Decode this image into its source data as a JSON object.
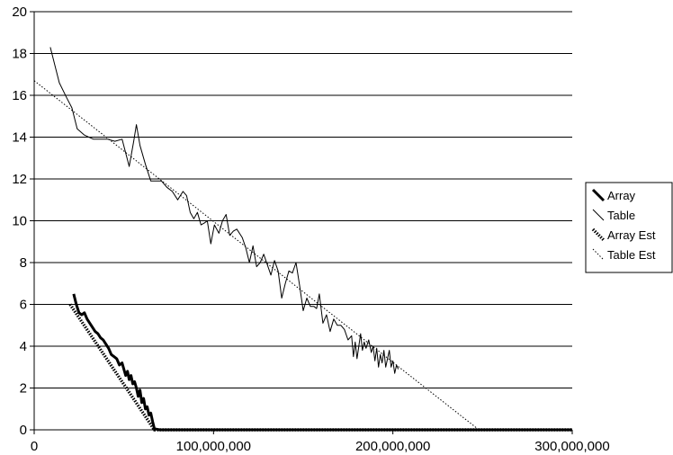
{
  "chart_data": {
    "type": "line",
    "title": "",
    "xlabel": "",
    "ylabel": "",
    "xlim": [
      0,
      300000000
    ],
    "ylim": [
      0,
      20
    ],
    "grid": "horizontal",
    "legend_position": "right",
    "x_ticks": [
      0,
      100000000,
      200000000,
      300000000
    ],
    "x_tick_labels": [
      "0",
      "100,000,000",
      "200,000,000",
      "300,000,000"
    ],
    "y_ticks": [
      0,
      2,
      4,
      6,
      8,
      10,
      12,
      14,
      16,
      18,
      20
    ],
    "y_tick_labels": [
      "0",
      "2",
      "4",
      "6",
      "8",
      "10",
      "12",
      "14",
      "16",
      "18",
      "20"
    ],
    "series": [
      {
        "name": "Array",
        "style": "thick-solid",
        "color": "#000000",
        "points": [
          [
            22000000,
            6.5
          ],
          [
            23500000,
            6.0
          ],
          [
            25000000,
            5.6
          ],
          [
            26500000,
            5.5
          ],
          [
            28000000,
            5.6
          ],
          [
            29500000,
            5.3
          ],
          [
            31000000,
            5.1
          ],
          [
            32500000,
            4.9
          ],
          [
            34000000,
            4.7
          ],
          [
            35500000,
            4.6
          ],
          [
            37000000,
            4.4
          ],
          [
            38500000,
            4.3
          ],
          [
            40000000,
            4.1
          ],
          [
            41500000,
            3.9
          ],
          [
            43000000,
            3.6
          ],
          [
            44500000,
            3.5
          ],
          [
            46000000,
            3.4
          ],
          [
            47500000,
            3.1
          ],
          [
            49000000,
            3.2
          ],
          [
            50000000,
            2.9
          ],
          [
            51000000,
            2.6
          ],
          [
            52000000,
            2.8
          ],
          [
            53000000,
            2.4
          ],
          [
            54000000,
            2.6
          ],
          [
            55000000,
            2.2
          ],
          [
            56000000,
            2.3
          ],
          [
            57000000,
            2.0
          ],
          [
            58000000,
            1.6
          ],
          [
            59000000,
            1.9
          ],
          [
            60000000,
            1.3
          ],
          [
            61000000,
            1.5
          ],
          [
            62000000,
            1.0
          ],
          [
            63000000,
            1.1
          ],
          [
            64000000,
            0.7
          ],
          [
            65000000,
            0.8
          ],
          [
            66000000,
            0.4
          ],
          [
            67000000,
            0.05
          ],
          [
            70000000,
            0
          ],
          [
            300000000,
            0
          ]
        ]
      },
      {
        "name": "Table",
        "style": "thin-solid",
        "color": "#000000",
        "points": [
          [
            9000000,
            18.3
          ],
          [
            14000000,
            16.6
          ],
          [
            18000000,
            15.9
          ],
          [
            21000000,
            15.4
          ],
          [
            24000000,
            14.4
          ],
          [
            28000000,
            14.1
          ],
          [
            33000000,
            13.9
          ],
          [
            38000000,
            13.9
          ],
          [
            41000000,
            13.9
          ],
          [
            45000000,
            13.8
          ],
          [
            49000000,
            13.9
          ],
          [
            53000000,
            12.6
          ],
          [
            55500000,
            13.8
          ],
          [
            57000000,
            14.6
          ],
          [
            59000000,
            13.6
          ],
          [
            62000000,
            12.7
          ],
          [
            65000000,
            11.9
          ],
          [
            68000000,
            11.9
          ],
          [
            71000000,
            11.9
          ],
          [
            74000000,
            11.6
          ],
          [
            77000000,
            11.4
          ],
          [
            80000000,
            11.0
          ],
          [
            83000000,
            11.4
          ],
          [
            85000000,
            11.2
          ],
          [
            87000000,
            10.4
          ],
          [
            89000000,
            10.1
          ],
          [
            91000000,
            10.4
          ],
          [
            93000000,
            9.8
          ],
          [
            95000000,
            9.9
          ],
          [
            96500000,
            10.0
          ],
          [
            98500000,
            8.9
          ],
          [
            100500000,
            9.8
          ],
          [
            103000000,
            9.4
          ],
          [
            105000000,
            10.0
          ],
          [
            107000000,
            10.3
          ],
          [
            109000000,
            9.3
          ],
          [
            111000000,
            9.5
          ],
          [
            113000000,
            9.6
          ],
          [
            116000000,
            9.2
          ],
          [
            118000000,
            8.7
          ],
          [
            120000000,
            8.0
          ],
          [
            122000000,
            8.8
          ],
          [
            124000000,
            7.8
          ],
          [
            126000000,
            8.0
          ],
          [
            128000000,
            8.4
          ],
          [
            130000000,
            7.9
          ],
          [
            132000000,
            7.4
          ],
          [
            134000000,
            8.1
          ],
          [
            136000000,
            7.6
          ],
          [
            138000000,
            6.3
          ],
          [
            140000000,
            7.0
          ],
          [
            142000000,
            7.6
          ],
          [
            144000000,
            7.5
          ],
          [
            146000000,
            8.0
          ],
          [
            148000000,
            6.9
          ],
          [
            150000000,
            5.7
          ],
          [
            152000000,
            6.3
          ],
          [
            154000000,
            5.9
          ],
          [
            156000000,
            5.9
          ],
          [
            157500000,
            5.8
          ],
          [
            159000000,
            6.5
          ],
          [
            161000000,
            5.1
          ],
          [
            163000000,
            5.5
          ],
          [
            165000000,
            4.7
          ],
          [
            167000000,
            5.3
          ],
          [
            169000000,
            5.0
          ],
          [
            171000000,
            5.0
          ],
          [
            173000000,
            4.8
          ],
          [
            175000000,
            4.3
          ],
          [
            177000000,
            4.5
          ],
          [
            178000000,
            3.5
          ],
          [
            179000000,
            4.2
          ],
          [
            180000000,
            3.4
          ],
          [
            181000000,
            4.0
          ],
          [
            182000000,
            4.6
          ],
          [
            183000000,
            3.8
          ],
          [
            184000000,
            4.2
          ],
          [
            185000000,
            3.9
          ],
          [
            186500000,
            4.3
          ],
          [
            188000000,
            3.7
          ],
          [
            189000000,
            4.0
          ],
          [
            190000000,
            3.3
          ],
          [
            191000000,
            3.9
          ],
          [
            192000000,
            3.0
          ],
          [
            193000000,
            3.6
          ],
          [
            194000000,
            3.2
          ],
          [
            195000000,
            3.8
          ],
          [
            196000000,
            3.0
          ],
          [
            197000000,
            3.4
          ],
          [
            198000000,
            3.8
          ],
          [
            199000000,
            3.0
          ],
          [
            200000000,
            3.3
          ],
          [
            201000000,
            2.7
          ],
          [
            202000000,
            3.1
          ],
          [
            203000000,
            2.9
          ]
        ]
      },
      {
        "name": "Array Est",
        "style": "thick-dotted",
        "color": "#000000",
        "points": [
          [
            20000000,
            6.0
          ],
          [
            67000000,
            0
          ],
          [
            300000000,
            0
          ]
        ]
      },
      {
        "name": "Table Est",
        "style": "thin-dotted",
        "color": "#000000",
        "points": [
          [
            0,
            16.7
          ],
          [
            248000000,
            0
          ]
        ]
      }
    ]
  }
}
